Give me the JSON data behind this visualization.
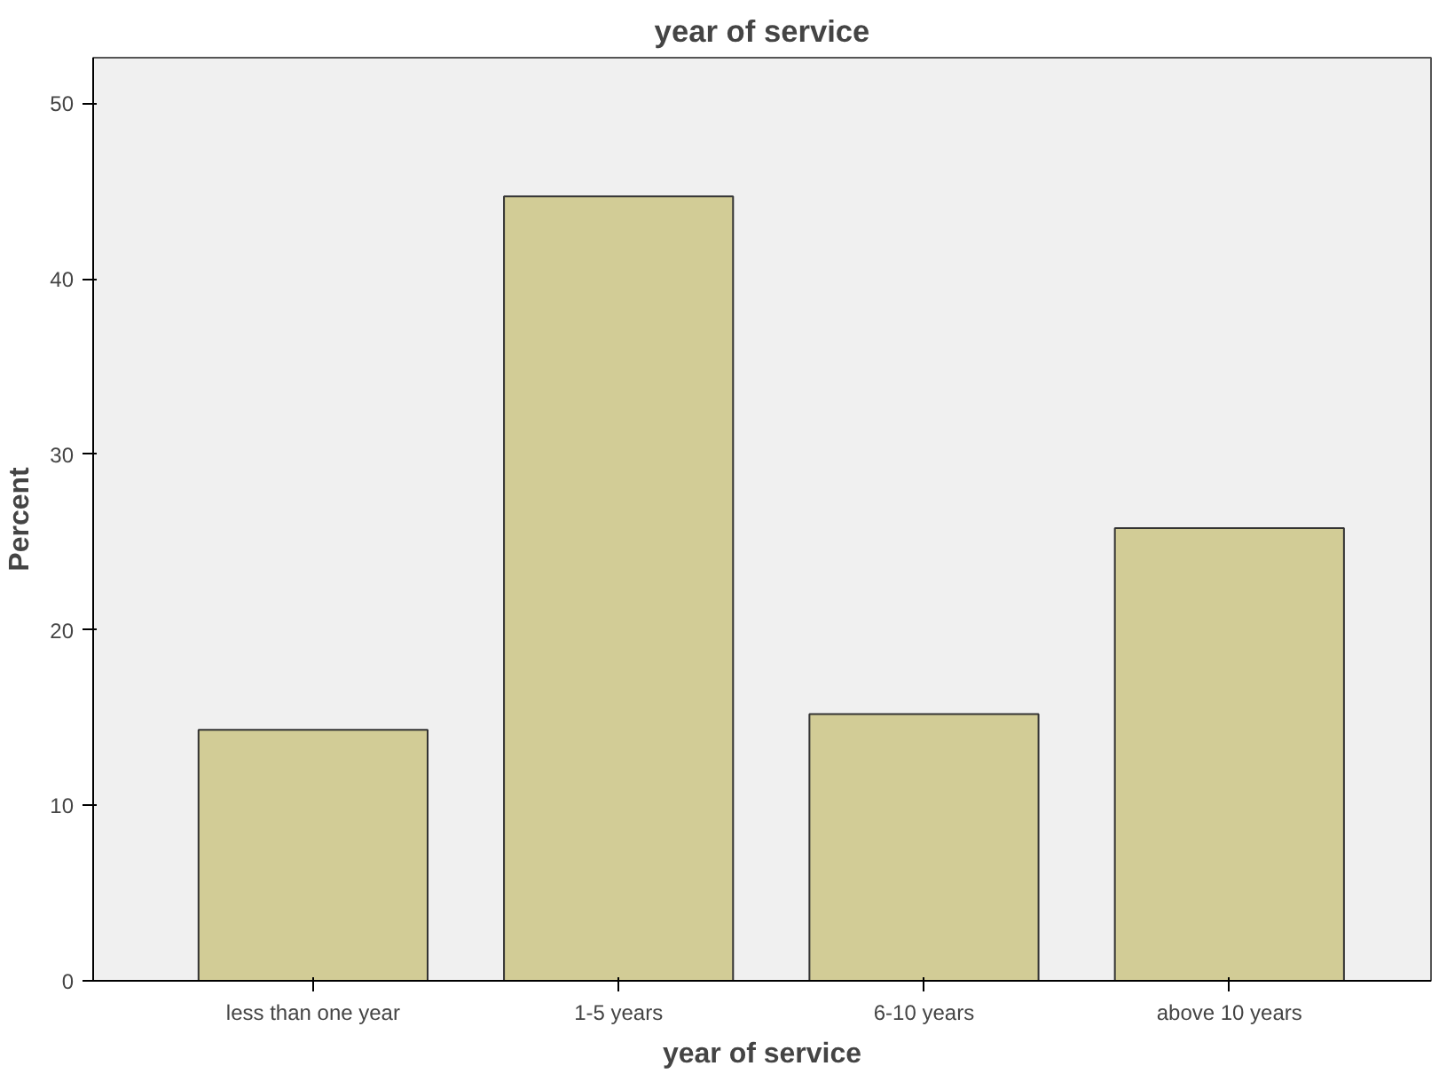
{
  "chart_data": {
    "type": "bar",
    "title": "year of service",
    "xlabel": "year of service",
    "ylabel": "Percent",
    "categories": [
      "less than one year",
      "1-5 years",
      "6-10 years",
      "above 10 years"
    ],
    "values": [
      14.3,
      44.7,
      15.2,
      25.8
    ],
    "color": "#d2cc96",
    "ylim": [
      0,
      52.6
    ],
    "yticks": [
      0,
      10,
      20,
      30,
      40,
      50
    ],
    "grid": false
  }
}
